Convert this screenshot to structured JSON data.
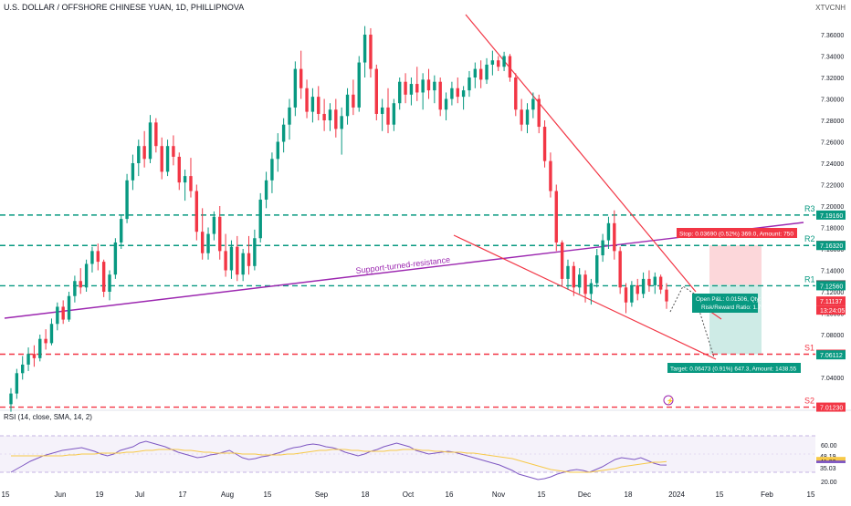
{
  "header": {
    "title": "U.S. DOLLAR / OFFSHORE CHINESE YUAN, 1D, PHILLIPNOVA",
    "symbol": "XTVCNH"
  },
  "chart_data": [
    {
      "type": "candlestick",
      "title": "U.S. DOLLAR / OFFSHORE CHINESE YUAN, 1D, PHILLIPNOVA",
      "ylim": [
        7.01,
        7.38
      ],
      "y_ticks": [
        7.04,
        7.06,
        7.08,
        7.1,
        7.12,
        7.14,
        7.16,
        7.18,
        7.2,
        7.22,
        7.24,
        7.26,
        7.28,
        7.3,
        7.32,
        7.34,
        7.36
      ],
      "x_labels": [
        "15",
        "Jun",
        "19",
        "Jul",
        "17",
        "Aug",
        "15",
        "Sep",
        "18",
        "Oct",
        "16",
        "Nov",
        "15",
        "Dec",
        "18",
        "2024",
        "15",
        "Feb",
        "15"
      ],
      "grid": false,
      "candles_ohlc": [
        [
          7.015,
          7.03,
          7.008,
          7.025
        ],
        [
          7.025,
          7.048,
          7.02,
          7.044
        ],
        [
          7.044,
          7.06,
          7.038,
          7.052
        ],
        [
          7.052,
          7.068,
          7.046,
          7.062
        ],
        [
          7.062,
          7.07,
          7.05,
          7.058
        ],
        [
          7.058,
          7.08,
          7.055,
          7.076
        ],
        [
          7.076,
          7.085,
          7.066,
          7.072
        ],
        [
          7.072,
          7.095,
          7.07,
          7.09
        ],
        [
          7.09,
          7.11,
          7.084,
          7.106
        ],
        [
          7.106,
          7.112,
          7.09,
          7.094
        ],
        [
          7.094,
          7.12,
          7.092,
          7.116
        ],
        [
          7.116,
          7.135,
          7.11,
          7.13
        ],
        [
          7.13,
          7.142,
          7.118,
          7.124
        ],
        [
          7.124,
          7.15,
          7.12,
          7.146
        ],
        [
          7.146,
          7.162,
          7.138,
          7.158
        ],
        [
          7.158,
          7.165,
          7.14,
          7.148
        ],
        [
          7.148,
          7.15,
          7.115,
          7.12
        ],
        [
          7.12,
          7.14,
          7.112,
          7.136
        ],
        [
          7.136,
          7.17,
          7.132,
          7.166
        ],
        [
          7.166,
          7.192,
          7.16,
          7.188
        ],
        [
          7.188,
          7.23,
          7.184,
          7.224
        ],
        [
          7.224,
          7.248,
          7.215,
          7.24
        ],
        [
          7.24,
          7.262,
          7.228,
          7.256
        ],
        [
          7.256,
          7.27,
          7.236,
          7.244
        ],
        [
          7.244,
          7.285,
          7.24,
          7.278
        ],
        [
          7.278,
          7.282,
          7.25,
          7.256
        ],
        [
          7.256,
          7.264,
          7.225,
          7.232
        ],
        [
          7.232,
          7.262,
          7.228,
          7.256
        ],
        [
          7.256,
          7.266,
          7.238,
          7.246
        ],
        [
          7.246,
          7.25,
          7.215,
          7.222
        ],
        [
          7.222,
          7.234,
          7.205,
          7.228
        ],
        [
          7.228,
          7.245,
          7.208,
          7.214
        ],
        [
          7.214,
          7.22,
          7.168,
          7.176
        ],
        [
          7.176,
          7.198,
          7.15,
          7.156
        ],
        [
          7.156,
          7.18,
          7.15,
          7.174
        ],
        [
          7.174,
          7.195,
          7.168,
          7.19
        ],
        [
          7.19,
          7.2,
          7.15,
          7.158
        ],
        [
          7.158,
          7.174,
          7.134,
          7.14
        ],
        [
          7.14,
          7.168,
          7.132,
          7.162
        ],
        [
          7.162,
          7.172,
          7.13,
          7.136
        ],
        [
          7.136,
          7.16,
          7.13,
          7.156
        ],
        [
          7.156,
          7.172,
          7.136,
          7.144
        ],
        [
          7.144,
          7.178,
          7.14,
          7.17
        ],
        [
          7.17,
          7.212,
          7.166,
          7.206
        ],
        [
          7.206,
          7.232,
          7.198,
          7.224
        ],
        [
          7.224,
          7.25,
          7.212,
          7.244
        ],
        [
          7.244,
          7.268,
          7.232,
          7.26
        ],
        [
          7.26,
          7.282,
          7.25,
          7.276
        ],
        [
          7.276,
          7.3,
          7.262,
          7.292
        ],
        [
          7.292,
          7.335,
          7.284,
          7.328
        ],
        [
          7.328,
          7.345,
          7.3,
          7.31
        ],
        [
          7.31,
          7.318,
          7.282,
          7.288
        ],
        [
          7.288,
          7.31,
          7.278,
          7.302
        ],
        [
          7.302,
          7.312,
          7.28,
          7.286
        ],
        [
          7.286,
          7.3,
          7.27,
          7.28
        ],
        [
          7.28,
          7.296,
          7.27,
          7.29
        ],
        [
          7.29,
          7.3,
          7.264,
          7.272
        ],
        [
          7.272,
          7.292,
          7.248,
          7.284
        ],
        [
          7.284,
          7.31,
          7.276,
          7.304
        ],
        [
          7.304,
          7.318,
          7.285,
          7.292
        ],
        [
          7.292,
          7.34,
          7.288,
          7.334
        ],
        [
          7.334,
          7.368,
          7.32,
          7.36
        ],
        [
          7.36,
          7.366,
          7.32,
          7.328
        ],
        [
          7.328,
          7.332,
          7.28,
          7.286
        ],
        [
          7.286,
          7.3,
          7.27,
          7.292
        ],
        [
          7.292,
          7.31,
          7.268,
          7.276
        ],
        [
          7.276,
          7.3,
          7.27,
          7.296
        ],
        [
          7.296,
          7.32,
          7.29,
          7.316
        ],
        [
          7.316,
          7.324,
          7.296,
          7.304
        ],
        [
          7.304,
          7.32,
          7.294,
          7.314
        ],
        [
          7.314,
          7.33,
          7.298,
          7.306
        ],
        [
          7.306,
          7.324,
          7.29,
          7.318
        ],
        [
          7.318,
          7.328,
          7.3,
          7.308
        ],
        [
          7.308,
          7.322,
          7.296,
          7.316
        ],
        [
          7.316,
          7.32,
          7.284,
          7.29
        ],
        [
          7.29,
          7.306,
          7.28,
          7.3
        ],
        [
          7.3,
          7.316,
          7.294,
          7.31
        ],
        [
          7.31,
          7.32,
          7.296,
          7.302
        ],
        [
          7.302,
          7.312,
          7.29,
          7.308
        ],
        [
          7.308,
          7.326,
          7.302,
          7.32
        ],
        [
          7.32,
          7.334,
          7.31,
          7.328
        ],
        [
          7.328,
          7.336,
          7.31,
          7.318
        ],
        [
          7.318,
          7.338,
          7.314,
          7.332
        ],
        [
          7.332,
          7.345,
          7.322,
          7.336
        ],
        [
          7.336,
          7.34,
          7.326,
          7.33
        ],
        [
          7.33,
          7.344,
          7.326,
          7.34
        ],
        [
          7.34,
          7.342,
          7.316,
          7.32
        ],
        [
          7.32,
          7.324,
          7.284,
          7.29
        ],
        [
          7.29,
          7.3,
          7.27,
          7.276
        ],
        [
          7.276,
          7.296,
          7.268,
          7.29
        ],
        [
          7.29,
          7.306,
          7.282,
          7.3
        ],
        [
          7.3,
          7.304,
          7.268,
          7.274
        ],
        [
          7.274,
          7.28,
          7.236,
          7.242
        ],
        [
          7.242,
          7.25,
          7.208,
          7.214
        ],
        [
          7.214,
          7.22,
          7.158,
          7.166
        ],
        [
          7.166,
          7.168,
          7.126,
          7.132
        ],
        [
          7.132,
          7.15,
          7.122,
          7.144
        ],
        [
          7.144,
          7.148,
          7.116,
          7.124
        ],
        [
          7.124,
          7.142,
          7.118,
          7.136
        ],
        [
          7.136,
          7.14,
          7.11,
          7.118
        ],
        [
          7.118,
          7.132,
          7.108,
          7.128
        ],
        [
          7.128,
          7.16,
          7.124,
          7.154
        ],
        [
          7.154,
          7.174,
          7.148,
          7.168
        ],
        [
          7.168,
          7.19,
          7.16,
          7.184
        ],
        [
          7.184,
          7.196,
          7.15,
          7.158
        ],
        [
          7.158,
          7.162,
          7.118,
          7.124
        ],
        [
          7.124,
          7.128,
          7.1,
          7.11
        ],
        [
          7.11,
          7.13,
          7.106,
          7.126
        ],
        [
          7.126,
          7.132,
          7.112,
          7.118
        ],
        [
          7.118,
          7.138,
          7.114,
          7.132
        ],
        [
          7.132,
          7.14,
          7.12,
          7.126
        ],
        [
          7.126,
          7.138,
          7.118,
          7.134
        ],
        [
          7.134,
          7.136,
          7.118,
          7.122
        ],
        [
          7.122,
          7.128,
          7.104,
          7.111
        ]
      ],
      "horizontal_levels": [
        {
          "name": "R3",
          "value": 7.1916
        },
        {
          "name": "R2",
          "value": 7.1632
        },
        {
          "name": "R1",
          "value": 7.1256
        },
        {
          "name": "S1",
          "value": 7.0617
        },
        {
          "name": "S2",
          "value": 7.0123
        }
      ],
      "price_labels": [
        {
          "value": 7.1916,
          "text": "7.19160",
          "color": "#089981"
        },
        {
          "value": 7.16333,
          "text": "7.16333",
          "color": "#f23645"
        },
        {
          "value": 7.1632,
          "text": "7.16320",
          "color": "#089981"
        },
        {
          "value": 7.12643,
          "text": "7.12643",
          "color": "#555555"
        },
        {
          "value": 7.1256,
          "text": "7.12560",
          "color": "#089981"
        },
        {
          "value": 7.11137,
          "text": "7.11137",
          "color": "#f23645"
        },
        {
          "value": 7.0617,
          "text": "7.06170",
          "color": "#f23645"
        },
        {
          "value": 7.06112,
          "text": "7.06112",
          "color": "#089981"
        },
        {
          "value": 7.0123,
          "text": "7.01230",
          "color": "#f23645"
        }
      ],
      "countdown": "13:24:05",
      "annotations": {
        "trendline_label": "Support-turned-resistance",
        "stop_label": "Stop: 0.03690 (0.52%) 369.0, Amount: 750",
        "position_label_line1": "Open P&L: 0.01506, Qty: 6775",
        "position_label_line2": "Risk/Reward Ratio: 1.75",
        "target_label": "Target: 0.06473 (0.91%) 647.3, Amount: 1438.55"
      }
    },
    {
      "type": "line",
      "title": "RSI (14, close, SMA, 14, 2)",
      "ylim": [
        20,
        80
      ],
      "y_ticks": [
        20.0,
        40.0,
        60.0
      ],
      "price_labels": [
        {
          "value": 48.19,
          "text": "48.19",
          "color": "#ffffff"
        },
        {
          "value": 41.83,
          "text": "41.83",
          "color": "#f7c948"
        },
        {
          "value": 37.87,
          "text": "37.87",
          "color": "#7e57c2"
        },
        {
          "value": 35.03,
          "text": "35.03",
          "color": "#ffffff"
        }
      ],
      "series": [
        {
          "values": [
            30,
            34,
            38,
            42,
            45,
            48,
            50,
            52,
            54,
            55,
            56,
            57,
            55,
            53,
            50,
            48,
            50,
            54,
            56,
            58,
            62,
            64,
            62,
            60,
            58,
            55,
            52,
            50,
            48,
            46,
            47,
            49,
            50,
            52,
            54,
            50,
            46,
            44,
            45,
            47,
            48,
            50,
            52,
            55,
            57,
            58,
            60,
            61,
            60,
            58,
            57,
            55,
            52,
            50,
            48,
            50,
            53,
            55,
            58,
            60,
            62,
            60,
            58,
            54,
            52,
            50,
            51,
            52,
            53,
            52,
            50,
            48,
            46,
            44,
            42,
            40,
            38,
            35,
            32,
            28,
            26,
            24,
            22,
            23,
            25,
            28,
            30,
            32,
            33,
            32,
            30,
            33,
            36,
            40,
            44,
            46,
            45,
            44,
            46,
            43,
            40,
            38,
            37.87
          ]
        },
        {
          "name": "SMA",
          "values": [
            48,
            48,
            48,
            48,
            48,
            48,
            48,
            48,
            48,
            49,
            49,
            50,
            50,
            50,
            51,
            51,
            51,
            51,
            52,
            52,
            53,
            54,
            54,
            55,
            55,
            55,
            55,
            54,
            54,
            53,
            52,
            52,
            51,
            51,
            51,
            51,
            50,
            50,
            50,
            49,
            49,
            49,
            49,
            50,
            50,
            51,
            52,
            53,
            54,
            54,
            55,
            55,
            55,
            54,
            54,
            53,
            53,
            53,
            53,
            54,
            54,
            55,
            55,
            55,
            54,
            54,
            53,
            53,
            52,
            52,
            52,
            51,
            51,
            50,
            49,
            48,
            47,
            46,
            45,
            43,
            41,
            39,
            37,
            35,
            33,
            32,
            31,
            30,
            30,
            30,
            30,
            31,
            32,
            33,
            34,
            36,
            37,
            38,
            39,
            40,
            41,
            41,
            41.83
          ]
        }
      ]
    }
  ]
}
